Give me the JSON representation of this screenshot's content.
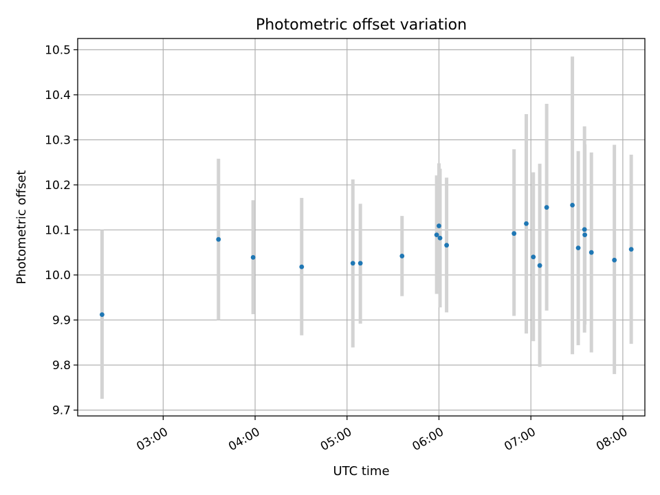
{
  "chart_data": {
    "type": "scatter",
    "title": "Photometric offset variation",
    "xlabel": "UTC time",
    "ylabel": "Photometric offset",
    "x_unit": "minutes after 00:00 UTC",
    "xlim": [
      124.2,
      494.4
    ],
    "ylim": [
      9.687,
      10.525
    ],
    "x_ticks": [
      {
        "value": 180,
        "label": "03:00"
      },
      {
        "value": 240,
        "label": "04:00"
      },
      {
        "value": 300,
        "label": "05:00"
      },
      {
        "value": 360,
        "label": "06:00"
      },
      {
        "value": 420,
        "label": "07:00"
      },
      {
        "value": 480,
        "label": "08:00"
      }
    ],
    "y_ticks": [
      {
        "value": 9.7,
        "label": "9.7"
      },
      {
        "value": 9.8,
        "label": "9.8"
      },
      {
        "value": 9.9,
        "label": "9.9"
      },
      {
        "value": 10.0,
        "label": "10.0"
      },
      {
        "value": 10.1,
        "label": "10.1"
      },
      {
        "value": 10.2,
        "label": "10.2"
      },
      {
        "value": 10.3,
        "label": "10.3"
      },
      {
        "value": 10.4,
        "label": "10.4"
      },
      {
        "value": 10.5,
        "label": "10.5"
      }
    ],
    "grid": true,
    "colors": {
      "marker": "#1f77b4",
      "errorbar": "#d3d3d3",
      "grid": "#b0b0b0"
    },
    "points": [
      {
        "x": 140.1,
        "y": 9.912,
        "ylow": 9.725,
        "yhigh": 10.1
      },
      {
        "x": 216.1,
        "y": 10.079,
        "ylow": 9.9,
        "yhigh": 10.258
      },
      {
        "x": 238.7,
        "y": 10.039,
        "ylow": 9.913,
        "yhigh": 10.166
      },
      {
        "x": 270.4,
        "y": 10.018,
        "ylow": 9.866,
        "yhigh": 10.171
      },
      {
        "x": 303.8,
        "y": 10.026,
        "ylow": 9.839,
        "yhigh": 10.212
      },
      {
        "x": 308.7,
        "y": 10.026,
        "ylow": 9.892,
        "yhigh": 10.158
      },
      {
        "x": 335.9,
        "y": 10.042,
        "ylow": 9.953,
        "yhigh": 10.131
      },
      {
        "x": 358.5,
        "y": 10.089,
        "ylow": 9.958,
        "yhigh": 10.221
      },
      {
        "x": 360.0,
        "y": 10.109,
        "ylow": 9.971,
        "yhigh": 10.248
      },
      {
        "x": 360.7,
        "y": 10.082,
        "ylow": 9.928,
        "yhigh": 10.236
      },
      {
        "x": 365.0,
        "y": 10.066,
        "ylow": 9.917,
        "yhigh": 10.216
      },
      {
        "x": 409.0,
        "y": 10.092,
        "ylow": 9.909,
        "yhigh": 10.279
      },
      {
        "x": 417.0,
        "y": 10.114,
        "ylow": 9.87,
        "yhigh": 10.357
      },
      {
        "x": 421.6,
        "y": 10.04,
        "ylow": 9.853,
        "yhigh": 10.228
      },
      {
        "x": 425.8,
        "y": 10.021,
        "ylow": 9.796,
        "yhigh": 10.247
      },
      {
        "x": 430.3,
        "y": 10.15,
        "ylow": 9.921,
        "yhigh": 10.38
      },
      {
        "x": 447.1,
        "y": 10.155,
        "ylow": 9.824,
        "yhigh": 10.485
      },
      {
        "x": 450.9,
        "y": 10.06,
        "ylow": 9.844,
        "yhigh": 10.275
      },
      {
        "x": 455.0,
        "y": 10.101,
        "ylow": 9.872,
        "yhigh": 10.33
      },
      {
        "x": 455.2,
        "y": 10.089,
        "ylow": 9.89,
        "yhigh": 10.29
      },
      {
        "x": 459.5,
        "y": 10.05,
        "ylow": 9.828,
        "yhigh": 10.272
      },
      {
        "x": 474.5,
        "y": 10.033,
        "ylow": 9.78,
        "yhigh": 10.289
      },
      {
        "x": 485.5,
        "y": 10.057,
        "ylow": 9.847,
        "yhigh": 10.267
      }
    ]
  }
}
